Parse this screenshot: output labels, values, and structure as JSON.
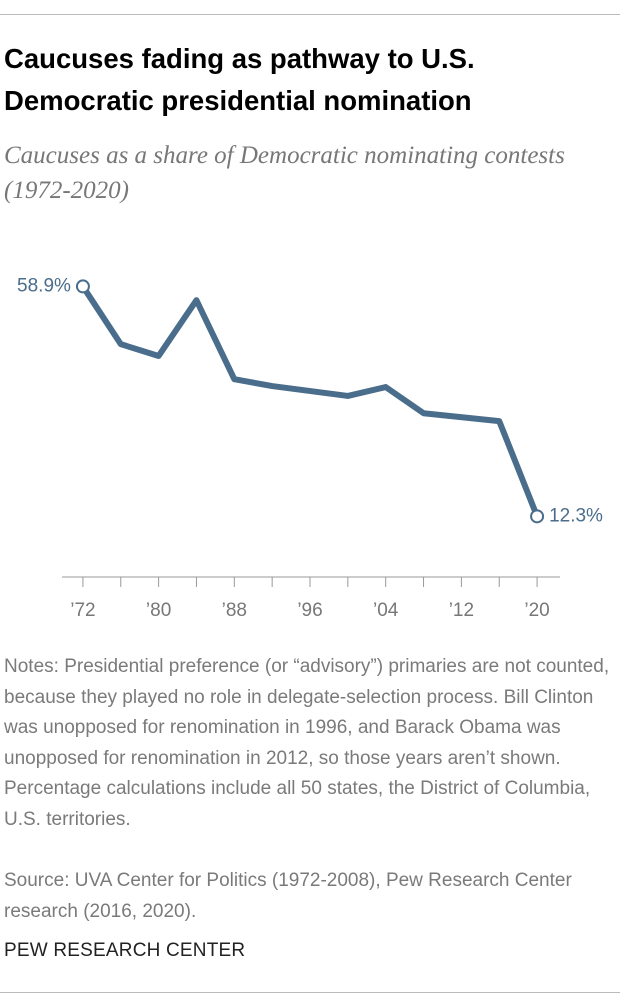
{
  "chart_data": {
    "type": "line",
    "title": "Caucuses fading as pathway to U.S. Democratic presidential nomination",
    "subtitle": "Caucuses as a share of Democratic nominating contests (1972-2020)",
    "x": [
      1972,
      1976,
      1980,
      1984,
      1988,
      1992,
      2000,
      2004,
      2008,
      2016,
      2020
    ],
    "series": [
      {
        "name": "Caucuses share",
        "color": "#4a6d8c",
        "values": [
          58.9,
          47.2,
          44.8,
          56.1,
          40.1,
          38.7,
          36.7,
          38.5,
          33.2,
          31.6,
          12.3
        ],
        "value_labels": [
          "58.9%",
          null,
          null,
          null,
          null,
          null,
          null,
          null,
          null,
          null,
          "12.3%"
        ]
      }
    ],
    "xlim": [
      1970,
      2022
    ],
    "xticks": [
      {
        "value": 1972,
        "label": "’72"
      },
      {
        "value": 1980,
        "label": "’80"
      },
      {
        "value": 1988,
        "label": "’88"
      },
      {
        "value": 1996,
        "label": "’96"
      },
      {
        "value": 2004,
        "label": "’04"
      },
      {
        "value": 2012,
        "label": "’12"
      },
      {
        "value": 2020,
        "label": "’20"
      }
    ],
    "xminor_ticks": [
      1976,
      1984,
      1992,
      2000,
      2008,
      2016
    ],
    "ylim": [
      0,
      60
    ],
    "notes": "Notes: Presidential preference (or “advisory”) primaries are not counted, because they played no role in delegate-selection process. Bill Clinton was unopposed for renomination in 1996, and Barack Obama was unopposed for renomination in 2012, so those years aren’t shown. Percentage calculations include all 50 states, the District of Columbia, U.S. territories.",
    "source": "Source: UVA Center for Politics (1972-2008), Pew Research Center research (2016, 2020).",
    "footer": "PEW RESEARCH CENTER"
  }
}
